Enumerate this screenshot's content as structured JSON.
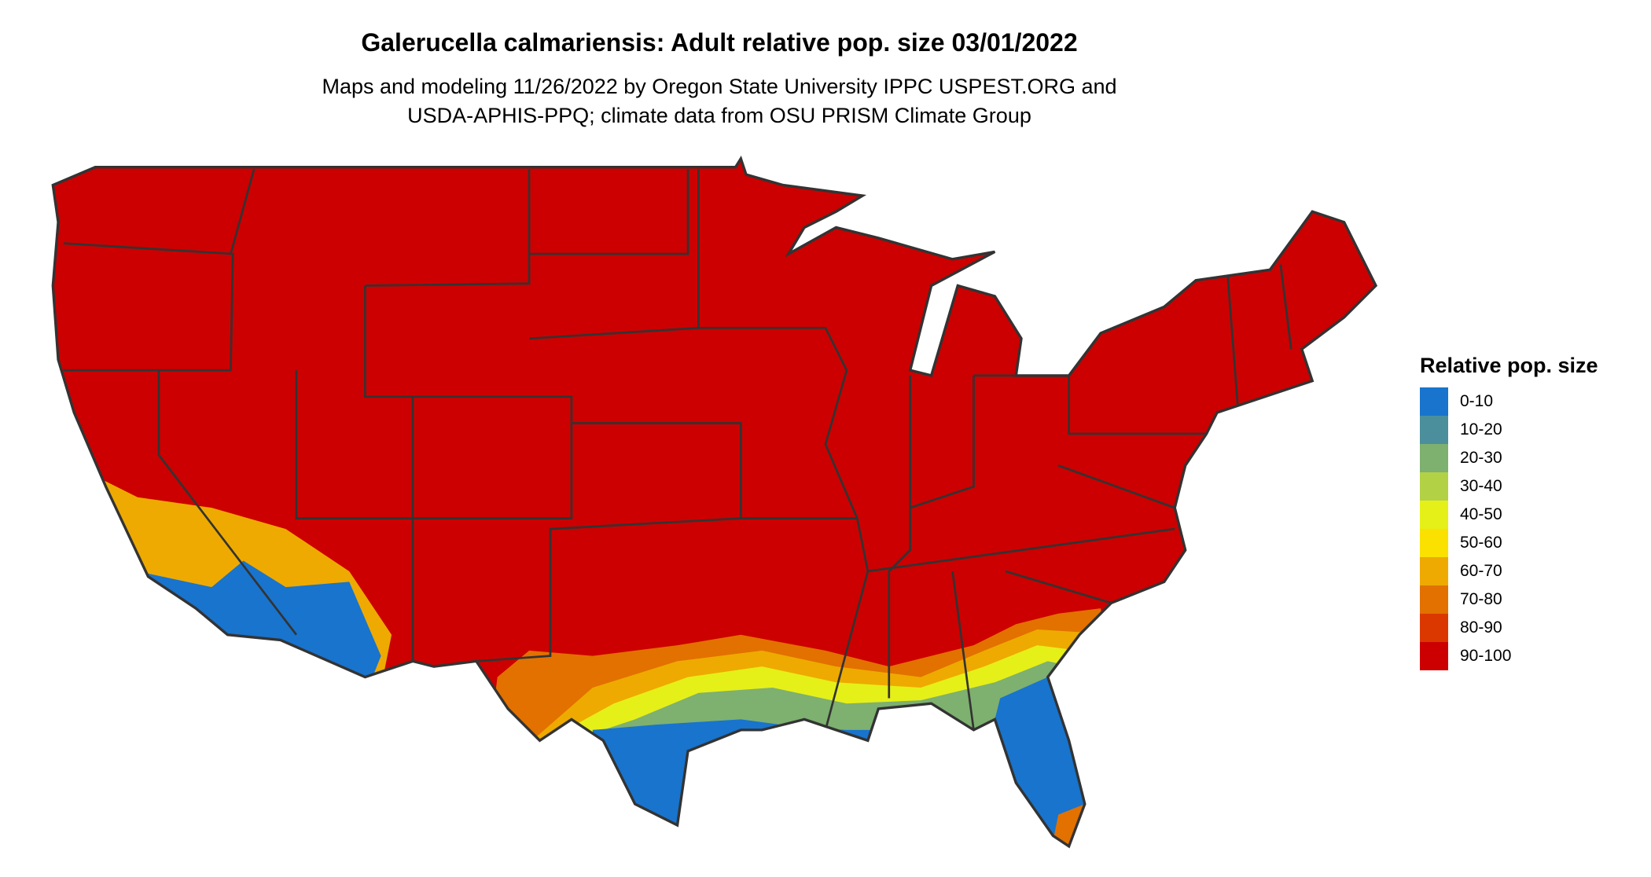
{
  "title": "Galerucella calmariensis: Adult relative pop. size 03/01/2022",
  "subtitle_line1": "Maps and modeling 11/26/2022 by Oregon State University IPPC USPEST.ORG and",
  "subtitle_line2": "USDA-APHIS-PPQ; climate data from OSU PRISM Climate Group",
  "legend": {
    "title": "Relative pop. size",
    "items": [
      {
        "label": "0-10",
        "color": "#1874CD"
      },
      {
        "label": "10-20",
        "color": "#4A8F9B"
      },
      {
        "label": "20-30",
        "color": "#7EB070"
      },
      {
        "label": "30-40",
        "color": "#B3D145"
      },
      {
        "label": "40-50",
        "color": "#E5F018"
      },
      {
        "label": "50-60",
        "color": "#FAE100"
      },
      {
        "label": "60-70",
        "color": "#EEAA00"
      },
      {
        "label": "70-80",
        "color": "#E27100"
      },
      {
        "label": "80-90",
        "color": "#DB3800"
      },
      {
        "label": "90-100",
        "color": "#CC0000"
      }
    ]
  },
  "map": {
    "region": "Contiguous United States",
    "border_color": "#333333"
  }
}
